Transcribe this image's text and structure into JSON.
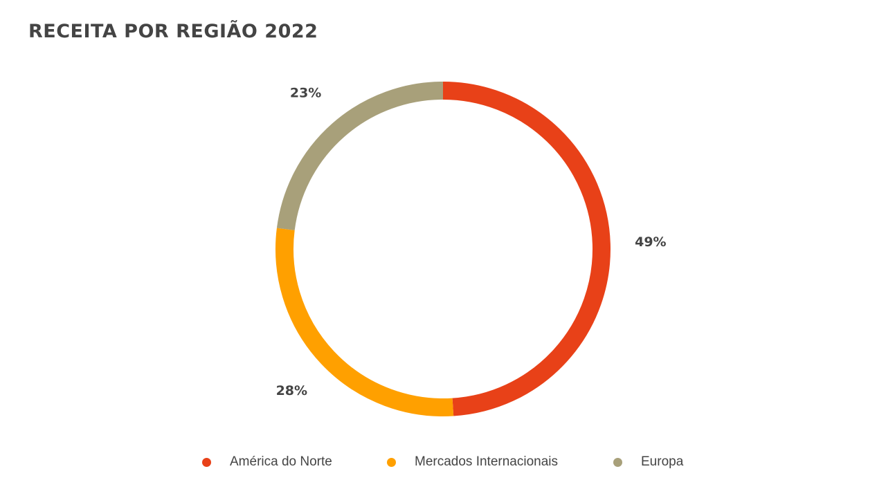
{
  "title": "RECEITA POR REGIÃO 2022",
  "chart_data": {
    "type": "pie",
    "variant": "donut",
    "title": "RECEITA POR REGIÃO 2022",
    "categories": [
      "América do Norte",
      "Mercados Internacionais",
      "Europa"
    ],
    "values": [
      49,
      28,
      23
    ],
    "value_labels": [
      "49%",
      "28%",
      "23%"
    ],
    "colors": [
      "#E84118",
      "#FFA000",
      "#A8A07A"
    ],
    "start_angle": "12 o'clock",
    "direction": "clockwise",
    "legend_position": "bottom"
  }
}
